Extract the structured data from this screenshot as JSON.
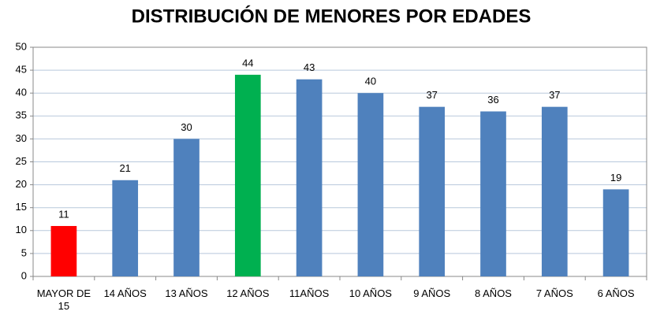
{
  "chart_data": {
    "type": "bar",
    "title": "DISTRIBUCIÓN DE MENORES POR EDADES",
    "categories": [
      "MAYOR DE 15",
      "14 AÑOS",
      "13 AÑOS",
      "12 AÑOS",
      "11AÑOS",
      "10 AÑOS",
      "9 AÑOS",
      "8 AÑOS",
      "7 AÑOS",
      "6 AÑOS"
    ],
    "values": [
      11,
      21,
      30,
      44,
      43,
      40,
      37,
      36,
      37,
      19
    ],
    "colors": [
      "#ff0000",
      "#4f81bd",
      "#4f81bd",
      "#00b050",
      "#4f81bd",
      "#4f81bd",
      "#4f81bd",
      "#4f81bd",
      "#4f81bd",
      "#4f81bd"
    ],
    "ylim": [
      0,
      50
    ],
    "yticks": [
      0,
      5,
      10,
      15,
      20,
      25,
      30,
      35,
      40,
      45,
      50
    ],
    "grid": true
  }
}
